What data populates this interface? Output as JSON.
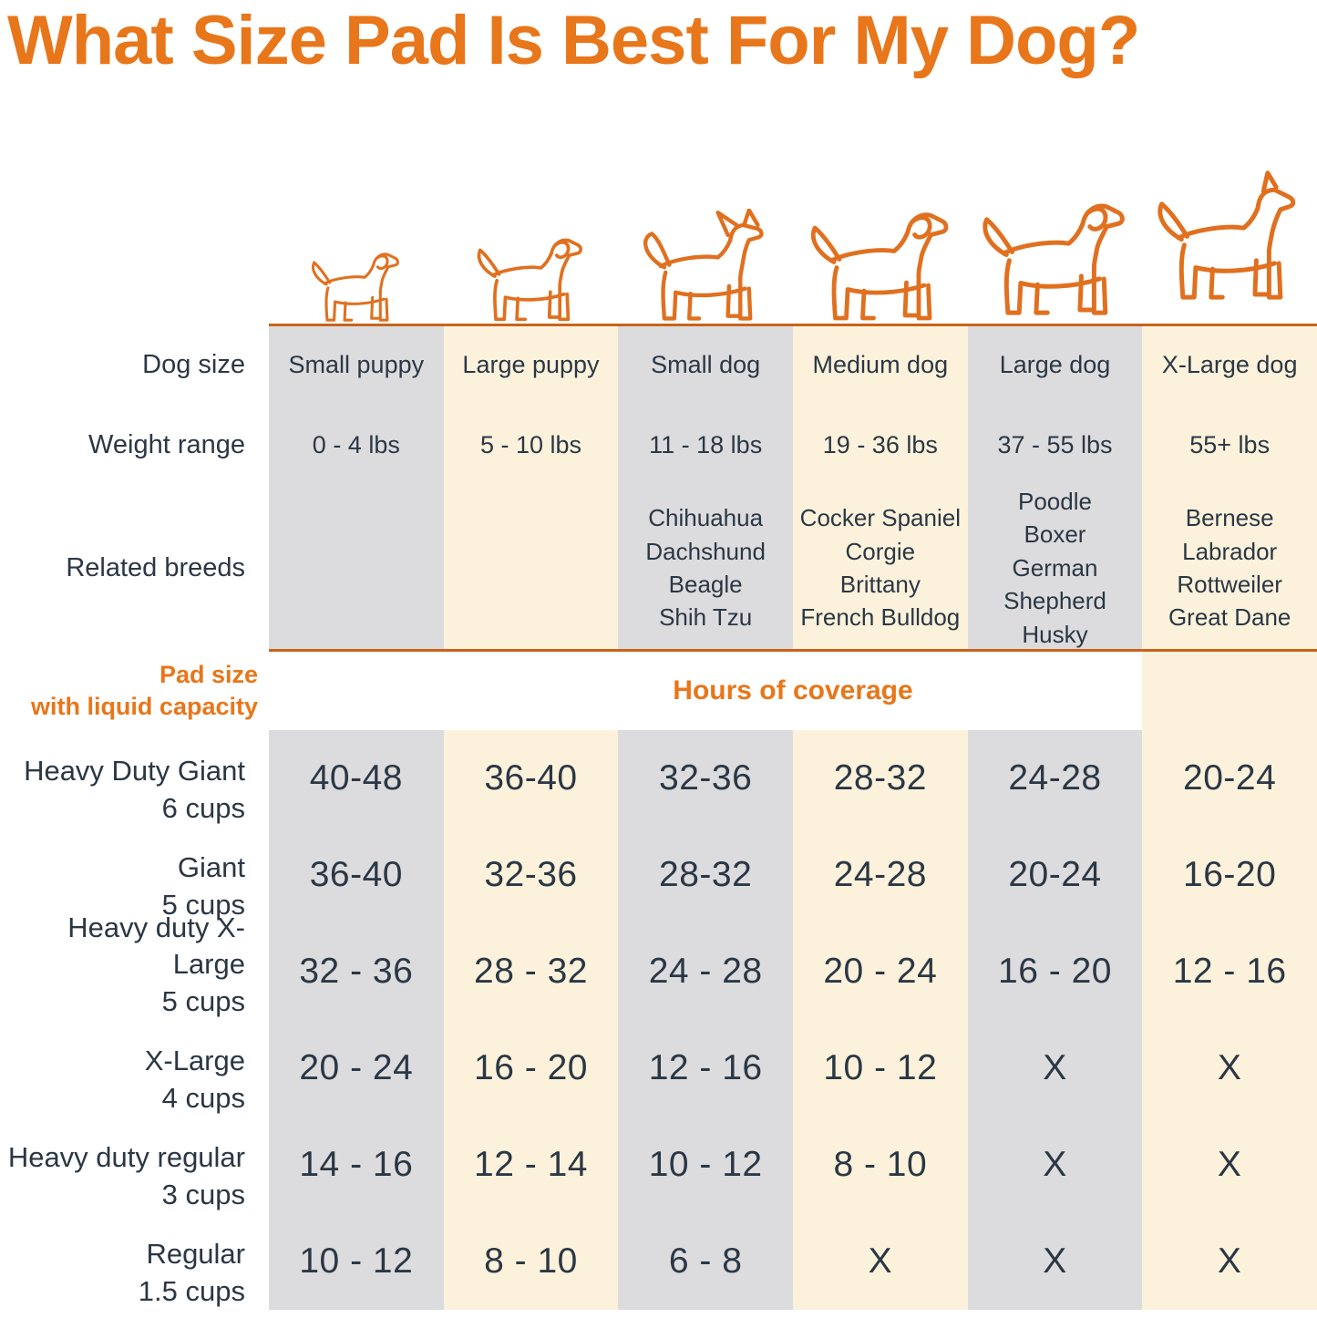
{
  "title": "What Size Pad Is Best For My Dog?",
  "row_labels": {
    "dog_size": "Dog size",
    "weight_range": "Weight range",
    "related_breeds": "Related breeds"
  },
  "headers": {
    "pad_size_line1": "Pad size",
    "pad_size_line2": "with liquid capacity",
    "hours": "Hours of coverage"
  },
  "icons": [
    "small-puppy-dog-icon",
    "large-puppy-dog-icon",
    "small-dog-icon",
    "medium-dog-icon",
    "large-dog-icon",
    "x-large-dog-icon"
  ],
  "colors": {
    "accent_orange": "#E8761A",
    "divider_orange": "#C9631A",
    "column_gray": "#DCDCDE",
    "column_cream": "#FCF2DC",
    "text_dark": "#2B3744",
    "dog_outline_orange": "#E0701F"
  },
  "chart_data": {
    "type": "table",
    "title": "What Size Pad Is Best For My Dog?",
    "row_header": "Pad size with liquid capacity",
    "value_header": "Hours of coverage",
    "columns": [
      {
        "dog_size": "Small puppy",
        "weight": "0 - 4 lbs",
        "breeds": []
      },
      {
        "dog_size": "Large puppy",
        "weight": "5 - 10 lbs",
        "breeds": []
      },
      {
        "dog_size": "Small dog",
        "weight": "11 - 18 lbs",
        "breeds": [
          "Chihuahua",
          "Dachshund",
          "Beagle",
          "Shih Tzu"
        ]
      },
      {
        "dog_size": "Medium dog",
        "weight": "19 - 36 lbs",
        "breeds": [
          "Cocker Spaniel",
          "Corgie",
          "Brittany",
          "French Bulldog"
        ]
      },
      {
        "dog_size": "Large dog",
        "weight": "37 - 55 lbs",
        "breeds": [
          "Poodle",
          "Boxer",
          "German Shepherd",
          "Husky"
        ]
      },
      {
        "dog_size": "X-Large dog",
        "weight": "55+ lbs",
        "breeds": [
          "Bernese",
          "Labrador",
          "Rottweiler",
          "Great Dane"
        ]
      }
    ],
    "rows": [
      {
        "pad": "Heavy Duty Giant",
        "capacity": "6 cups",
        "hours": [
          "40-48",
          "36-40",
          "32-36",
          "28-32",
          "24-28",
          "20-24"
        ]
      },
      {
        "pad": "Giant",
        "capacity": "5 cups",
        "hours": [
          "36-40",
          "32-36",
          "28-32",
          "24-28",
          "20-24",
          "16-20"
        ]
      },
      {
        "pad": "Heavy duty X-Large",
        "capacity": "5 cups",
        "hours": [
          "32 - 36",
          "28 - 32",
          "24 - 28",
          "20 - 24",
          "16 - 20",
          "12 - 16"
        ]
      },
      {
        "pad": "X-Large",
        "capacity": "4 cups",
        "hours": [
          "20 - 24",
          "16 - 20",
          "12 - 16",
          "10 - 12",
          "X",
          "X"
        ]
      },
      {
        "pad": "Heavy duty regular",
        "capacity": "3 cups",
        "hours": [
          "14 - 16",
          "12 - 14",
          "10 - 12",
          "8 - 10",
          "X",
          "X"
        ]
      },
      {
        "pad": "Regular",
        "capacity": "1.5 cups",
        "hours": [
          "10 - 12",
          "8 - 10",
          "6 - 8",
          "X",
          "X",
          "X"
        ]
      }
    ]
  }
}
